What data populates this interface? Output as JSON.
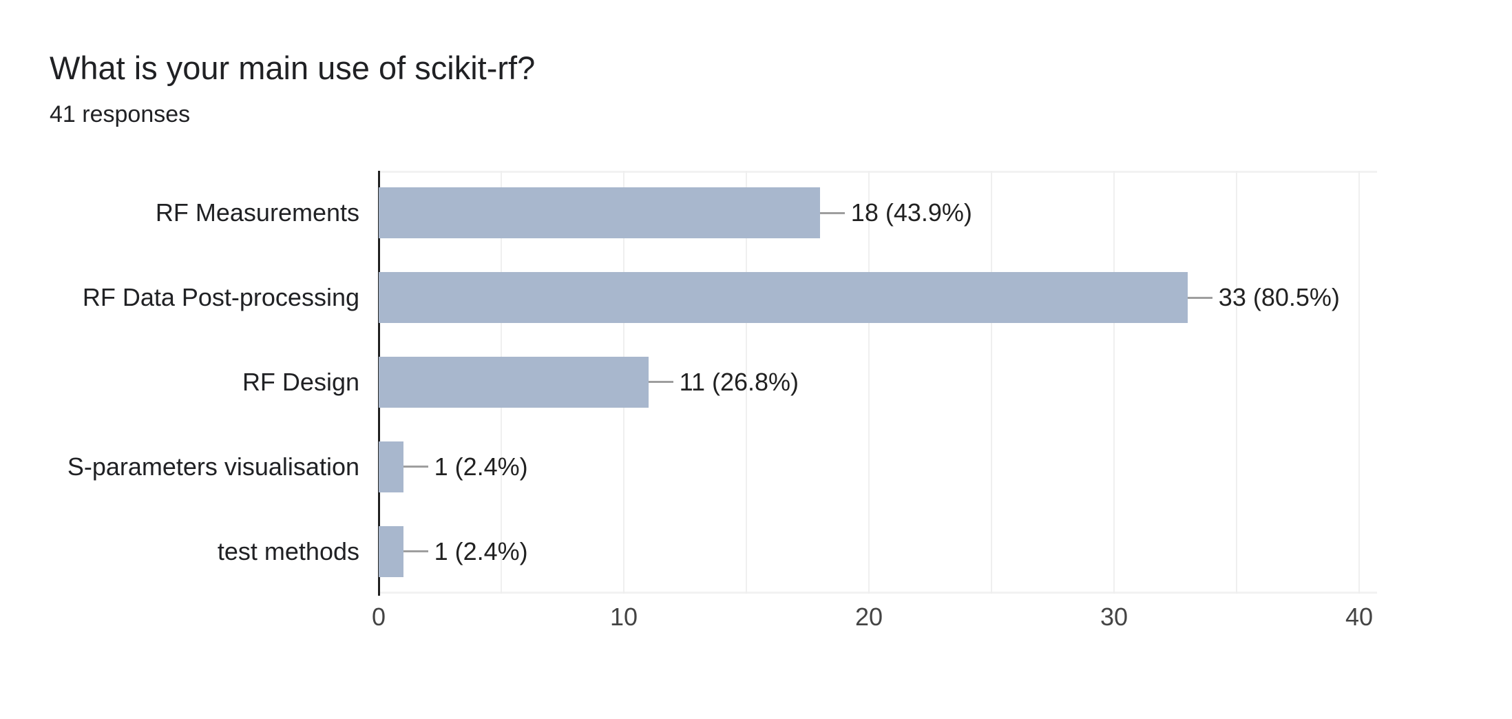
{
  "header": {
    "title": "What is your main use of scikit-rf?",
    "subtitle": "41 responses"
  },
  "chart_data": {
    "type": "bar",
    "orientation": "horizontal",
    "title": "What is your main use of scikit-rf?",
    "subtitle": "41 responses",
    "categories": [
      "RF Measurements",
      "RF Data Post-processing",
      "RF Design",
      "S-parameters visualisation",
      "test methods"
    ],
    "values": [
      18,
      33,
      11,
      1,
      1
    ],
    "annotations": [
      "18 (43.9%)",
      "33 (80.5%)",
      "11 (26.8%)",
      "1 (2.4%)",
      "1 (2.4%)"
    ],
    "x_ticks": [
      0,
      10,
      20,
      30,
      40
    ],
    "xlim": [
      0,
      40
    ],
    "gridline_step": 5,
    "grid": true,
    "legend_position": "none",
    "xlabel": "",
    "ylabel": "",
    "colors": {
      "bar": "#a8b7cd",
      "connector": "#9e9e9e",
      "gridline": "#efefef",
      "plot_edge": "#f2f2f2",
      "axis_line": "#212121",
      "title_text": "#202124",
      "label_text": "#202124",
      "annotation_text": "#212121",
      "tick_text": "#444444",
      "background": "#ffffff"
    }
  }
}
